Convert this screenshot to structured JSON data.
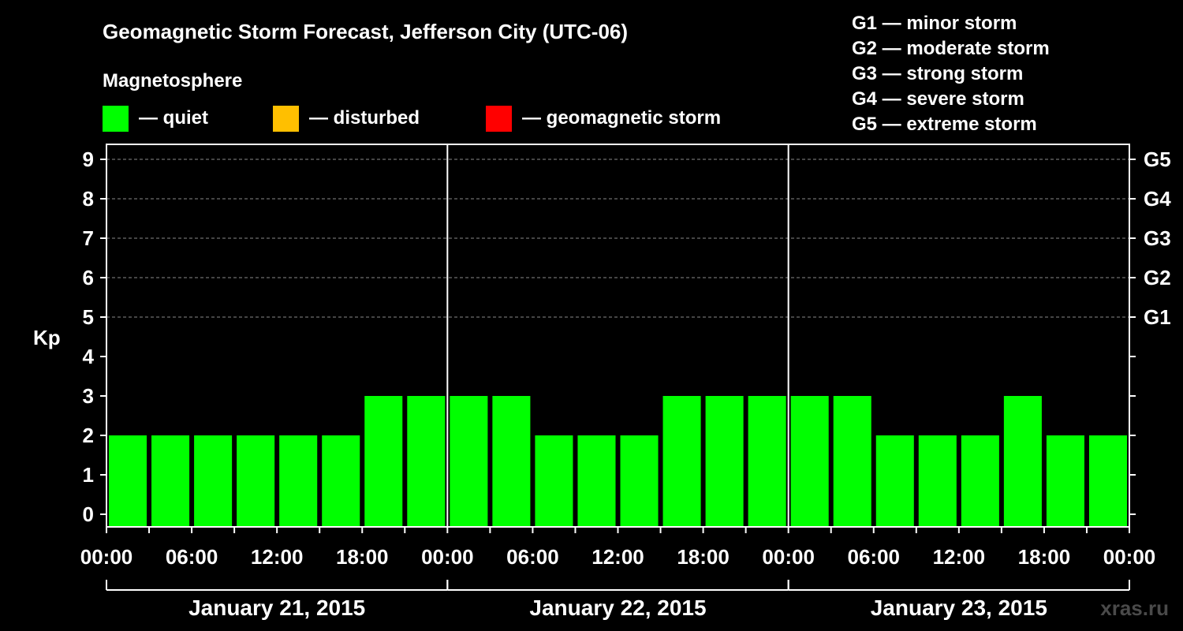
{
  "chart_data": {
    "type": "bar",
    "title": "Geomagnetic Storm Forecast, Jefferson City (UTC-06)",
    "legend": {
      "heading": "Magnetosphere",
      "items": [
        {
          "label": "— quiet",
          "color": "#00ff00"
        },
        {
          "label": "— disturbed",
          "color": "#ffbf00"
        },
        {
          "label": "— geomagnetic storm",
          "color": "#ff0000"
        }
      ]
    },
    "storm_scale": [
      "G1 — minor storm",
      "G2 — moderate storm",
      "G3 — strong storm",
      "G4 — severe storm",
      "G5 — extreme storm"
    ],
    "ylabel": "Kp",
    "ylim": [
      0,
      9
    ],
    "y_ticks": [
      "0",
      "1",
      "2",
      "3",
      "4",
      "5",
      "6",
      "7",
      "8",
      "9"
    ],
    "right_ticks": [
      {
        "kp": 5,
        "label": "G1"
      },
      {
        "kp": 6,
        "label": "G2"
      },
      {
        "kp": 7,
        "label": "G3"
      },
      {
        "kp": 8,
        "label": "G4"
      },
      {
        "kp": 9,
        "label": "G5"
      }
    ],
    "x_tick_labels": [
      "00:00",
      "06:00",
      "12:00",
      "18:00",
      "00:00",
      "06:00",
      "12:00",
      "18:00",
      "00:00",
      "06:00",
      "12:00",
      "18:00",
      "00:00"
    ],
    "days": [
      "January 21, 2015",
      "January 22, 2015",
      "January 23, 2015"
    ],
    "interval_hours": 3,
    "values": [
      2,
      2,
      2,
      2,
      2,
      2,
      3,
      3,
      3,
      3,
      2,
      2,
      2,
      3,
      3,
      3,
      3,
      3,
      2,
      2,
      2,
      3,
      2,
      2
    ],
    "grid": "dashed at Kp 5-9"
  },
  "watermark": "xras.ru"
}
